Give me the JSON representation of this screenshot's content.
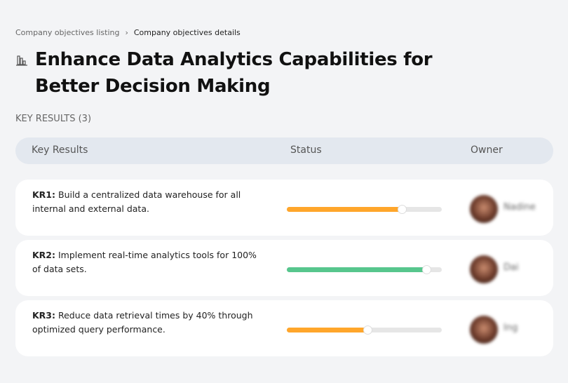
{
  "breadcrumb": {
    "parent": "Company objectives listing",
    "separator": "›",
    "current": "Company objectives details"
  },
  "title": "Enhance Data Analytics Capabilities for Better Decision Making",
  "title_icon": "bar-chart-icon",
  "key_results_label": "KEY RESULTS (3)",
  "table": {
    "headers": {
      "key_results": "Key Results",
      "status": "Status",
      "owner": "Owner"
    },
    "rows": [
      {
        "code": "KR1:",
        "text": " Build a centralized data warehouse for all internal and external data.",
        "progress": 74,
        "color": "#ffa62b",
        "owner": "Nadine"
      },
      {
        "code": "KR2:",
        "text": " Implement real-time analytics tools for 100% of data sets.",
        "progress": 90,
        "color": "#57c68d",
        "owner": "Dai"
      },
      {
        "code": "KR3:",
        "text": " Reduce data retrieval times by 40% through optimized query performance.",
        "progress": 52,
        "color": "#ffa62b",
        "owner": "Ing"
      }
    ]
  }
}
